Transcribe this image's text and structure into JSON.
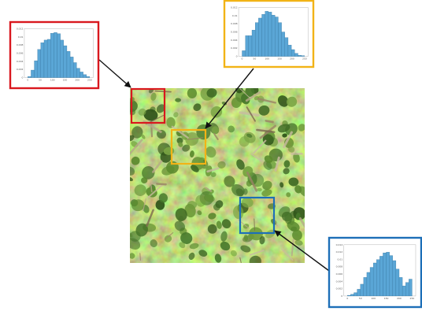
{
  "colors": {
    "red": "#d9181e",
    "yellow": "#f2b316",
    "blue": "#1d6fb8",
    "bar_fill": "#5aa6d6",
    "bar_edge": "#2f6f9a",
    "arrow": "#111111"
  },
  "histograms": [
    {
      "id": "red",
      "x_ticks": [
        "0",
        "50",
        "100",
        "150",
        "200",
        "250"
      ],
      "y_ticks": [
        "0",
        "0.002",
        "0.004",
        "0.006",
        "0.008",
        "0.01",
        "0.012"
      ],
      "values": [
        0.0003,
        0.002,
        0.0045,
        0.0075,
        0.0093,
        0.01,
        0.0102,
        0.0118,
        0.012,
        0.0117,
        0.01,
        0.0085,
        0.007,
        0.0055,
        0.004,
        0.0025,
        0.0015,
        0.0008,
        0.0003
      ]
    },
    {
      "id": "yellow",
      "x_ticks": [
        "0",
        "50",
        "100",
        "150",
        "200",
        "250"
      ],
      "y_ticks": [
        "0",
        "0.002",
        "0.004",
        "0.006",
        "0.008",
        "0.01",
        "0.012"
      ],
      "values": [
        0.0015,
        0.0055,
        0.0055,
        0.007,
        0.009,
        0.0102,
        0.0112,
        0.012,
        0.0118,
        0.011,
        0.0105,
        0.009,
        0.0065,
        0.005,
        0.003,
        0.0018,
        0.0008,
        0.0003,
        0.0002
      ]
    },
    {
      "id": "blue",
      "x_ticks": [
        "0",
        "50",
        "100",
        "150",
        "200",
        "250"
      ],
      "y_ticks": [
        "0",
        "0.002",
        "0.004",
        "0.006",
        "0.008",
        "0.01",
        "0.012",
        "0.014"
      ],
      "values": [
        0.0002,
        0.0005,
        0.001,
        0.002,
        0.0035,
        0.0055,
        0.007,
        0.0085,
        0.0098,
        0.0108,
        0.0118,
        0.0128,
        0.013,
        0.012,
        0.0105,
        0.008,
        0.0055,
        0.003,
        0.004,
        0.005
      ]
    }
  ]
}
